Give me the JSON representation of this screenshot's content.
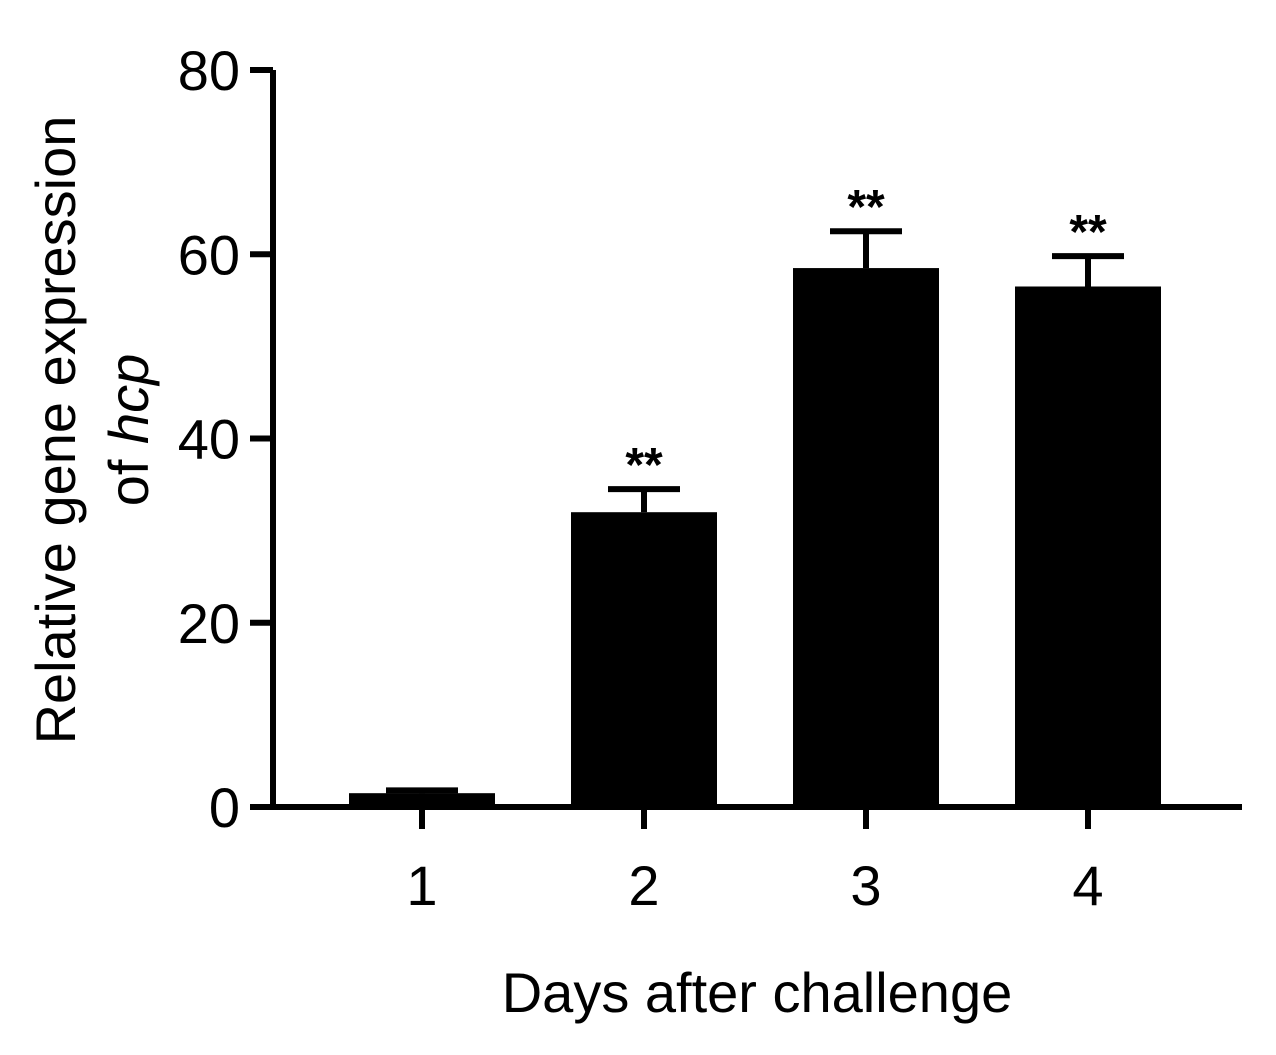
{
  "chart_data": {
    "type": "bar",
    "categories": [
      "1",
      "2",
      "3",
      "4"
    ],
    "series": [
      {
        "values": [
          1.5,
          32,
          58.5,
          56.5
        ],
        "errors": [
          0.3,
          2.5,
          4,
          3.3
        ],
        "significance": [
          "",
          "**",
          "**",
          "**"
        ]
      }
    ],
    "xlabel": "Days after challenge",
    "ylabel_line1": "Relative gene expression",
    "ylabel_line2_prefix": "of ",
    "ylabel_line2_italic": "hcp",
    "ylim": [
      0,
      80
    ],
    "yticks": [
      "0",
      "20",
      "40",
      "60",
      "80"
    ],
    "bar_color": "#000000",
    "grid": false
  }
}
